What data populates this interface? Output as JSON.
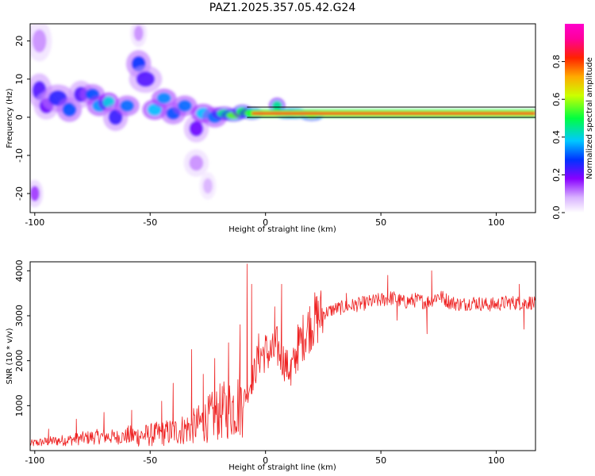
{
  "figure": {
    "title": "PAZ1.2025.357.05.42.G24"
  },
  "colors": {
    "snr_line": "#ee2222",
    "ridge_line": "#000000",
    "frame": "#000000"
  },
  "chart_data": [
    {
      "type": "heatmap",
      "xlabel": "Height of straight line (km)",
      "ylabel": "Frequency (Hz)",
      "xlim": [
        -102,
        117
      ],
      "ylim": [
        -25,
        24.5
      ],
      "xticks": [
        -100,
        -50,
        0,
        50,
        100
      ],
      "yticks": [
        -20,
        -10,
        0,
        10,
        20
      ],
      "xtick_labels": [
        "-100",
        "-50",
        "0",
        "50",
        "100"
      ],
      "ytick_labels": [
        "-20",
        "-10",
        "0",
        "10",
        "20"
      ],
      "ridge_line": {
        "x": [
          -8,
          117
        ],
        "y": [
          1,
          1
        ]
      },
      "colorbar": {
        "label": "Normalized spectral amplitude",
        "range": [
          0.0,
          1.0
        ],
        "ticks": [
          0.0,
          0.2,
          0.4,
          0.6,
          0.8
        ],
        "tick_labels": [
          "0.0",
          "0.2",
          "0.4",
          "0.6",
          "0.8"
        ],
        "stops": [
          {
            "v": 0.0,
            "color": "#ffffff"
          },
          {
            "v": 0.08,
            "color": "#d9b3ff"
          },
          {
            "v": 0.18,
            "color": "#8800ff"
          },
          {
            "v": 0.28,
            "color": "#0033ff"
          },
          {
            "v": 0.38,
            "color": "#00c8ff"
          },
          {
            "v": 0.5,
            "color": "#00ff40"
          },
          {
            "v": 0.62,
            "color": "#ccff00"
          },
          {
            "v": 0.72,
            "color": "#ffaa00"
          },
          {
            "v": 0.82,
            "color": "#ff2200"
          },
          {
            "v": 0.92,
            "color": "#ff0099"
          },
          {
            "v": 1.0,
            "color": "#ff00cc"
          }
        ]
      },
      "blobs": [
        {
          "x": -98,
          "y": 7,
          "v": 0.22,
          "rx": 3,
          "ry": 2.5
        },
        {
          "x": -95,
          "y": 3,
          "v": 0.2,
          "rx": 3,
          "ry": 2
        },
        {
          "x": -90,
          "y": 5,
          "v": 0.25,
          "rx": 4,
          "ry": 2
        },
        {
          "x": -85,
          "y": 2,
          "v": 0.3,
          "rx": 3,
          "ry": 1.8
        },
        {
          "x": -80,
          "y": 6,
          "v": 0.22,
          "rx": 3,
          "ry": 2
        },
        {
          "x": -75,
          "y": 6,
          "v": 0.3,
          "rx": 3,
          "ry": 1.5
        },
        {
          "x": -72,
          "y": 3,
          "v": 0.35,
          "rx": 3,
          "ry": 1.5
        },
        {
          "x": -68,
          "y": 4,
          "v": 0.4,
          "rx": 2.5,
          "ry": 1.4
        },
        {
          "x": -65,
          "y": 0,
          "v": 0.24,
          "rx": 3,
          "ry": 2
        },
        {
          "x": -60,
          "y": 3,
          "v": 0.32,
          "rx": 3,
          "ry": 1.5
        },
        {
          "x": -55,
          "y": 14,
          "v": 0.28,
          "rx": 3,
          "ry": 2
        },
        {
          "x": -52,
          "y": 10,
          "v": 0.22,
          "rx": 4,
          "ry": 2
        },
        {
          "x": -48,
          "y": 2,
          "v": 0.38,
          "rx": 3,
          "ry": 1.5
        },
        {
          "x": -44,
          "y": 5,
          "v": 0.34,
          "rx": 3,
          "ry": 1.4
        },
        {
          "x": -40,
          "y": 1,
          "v": 0.3,
          "rx": 3,
          "ry": 1.6
        },
        {
          "x": -35,
          "y": 3,
          "v": 0.32,
          "rx": 3,
          "ry": 1.5
        },
        {
          "x": -30,
          "y": -3,
          "v": 0.2,
          "rx": 3,
          "ry": 2
        },
        {
          "x": -27,
          "y": 1,
          "v": 0.38,
          "rx": 3,
          "ry": 1.4
        },
        {
          "x": -22,
          "y": 0,
          "v": 0.32,
          "rx": 3,
          "ry": 1.5
        },
        {
          "x": -18,
          "y": 1,
          "v": 0.45,
          "rx": 3,
          "ry": 1
        },
        {
          "x": -14,
          "y": 0.5,
          "v": 0.55,
          "rx": 3,
          "ry": 0.9
        },
        {
          "x": -10,
          "y": 1.5,
          "v": 0.5,
          "rx": 2.5,
          "ry": 1
        },
        {
          "x": -6,
          "y": 1,
          "v": 0.55,
          "rx": 3,
          "ry": 0.9
        },
        {
          "x": 5,
          "y": 3,
          "v": 0.45,
          "rx": 2,
          "ry": 1.2
        },
        {
          "x": 9,
          "y": 1,
          "v": 0.6,
          "rx": 3,
          "ry": 0.8
        },
        {
          "x": 13,
          "y": 1,
          "v": 0.65,
          "rx": 3,
          "ry": 0.8
        },
        {
          "x": 20,
          "y": 0.5,
          "v": 0.6,
          "rx": 3,
          "ry": 0.8
        },
        {
          "x": -100,
          "y": -20,
          "v": 0.15,
          "rx": 2,
          "ry": 2
        },
        {
          "x": -98,
          "y": 20,
          "v": 0.1,
          "rx": 3,
          "ry": 3
        },
        {
          "x": -55,
          "y": 22,
          "v": 0.1,
          "rx": 2,
          "ry": 2
        },
        {
          "x": -30,
          "y": -12,
          "v": 0.1,
          "rx": 3,
          "ry": 2
        },
        {
          "x": -25,
          "y": -18,
          "v": 0.08,
          "rx": 2,
          "ry": 2
        }
      ],
      "ridge_band": {
        "x_start": -8,
        "x_end": 117,
        "y": 1,
        "v": 0.8
      }
    },
    {
      "type": "line",
      "xlabel": "Height of straight line (km)",
      "ylabel": "SNR (10 * v/v)",
      "xlim": [
        -102,
        117
      ],
      "ylim": [
        0,
        4200
      ],
      "xticks": [
        -100,
        -50,
        0,
        50,
        100
      ],
      "yticks": [
        1000,
        2000,
        3000,
        4000
      ],
      "xtick_labels": [
        "-100",
        "-50",
        "0",
        "50",
        "100"
      ],
      "ytick_labels": [
        "1000",
        "2000",
        "3000",
        "4000"
      ],
      "series": [
        {
          "name": "SNR",
          "x": [
            -102,
            -100,
            -95,
            -90,
            -85,
            -80,
            -75,
            -70,
            -65,
            -60,
            -55,
            -50,
            -45,
            -40,
            -35,
            -30,
            -25,
            -20,
            -15,
            -10,
            -8,
            -5,
            -3,
            0,
            3,
            5,
            8,
            10,
            12,
            15,
            18,
            20,
            25,
            30,
            35,
            40,
            45,
            50,
            55,
            60,
            65,
            70,
            75,
            80,
            85,
            90,
            95,
            100,
            105,
            110,
            115,
            117
          ],
          "y": [
            150,
            170,
            200,
            220,
            240,
            270,
            300,
            320,
            300,
            320,
            330,
            350,
            380,
            420,
            480,
            560,
            700,
            850,
            950,
            1100,
            1300,
            1700,
            2100,
            2200,
            2150,
            2300,
            2000,
            1800,
            1900,
            2400,
            2700,
            2850,
            3050,
            3150,
            3200,
            3250,
            3300,
            3350,
            3400,
            3300,
            3350,
            3300,
            3450,
            3300,
            3250,
            3300,
            3250,
            3250,
            3300,
            3280,
            3300,
            3250
          ],
          "spikes": [
            {
              "x": -94,
              "y": 480
            },
            {
              "x": -82,
              "y": 700
            },
            {
              "x": -70,
              "y": 850
            },
            {
              "x": -58,
              "y": 900
            },
            {
              "x": -45,
              "y": 1100
            },
            {
              "x": -40,
              "y": 1500
            },
            {
              "x": -32,
              "y": 2250
            },
            {
              "x": -27,
              "y": 1700
            },
            {
              "x": -22,
              "y": 2050
            },
            {
              "x": -16,
              "y": 2400
            },
            {
              "x": -11,
              "y": 2800
            },
            {
              "x": -8,
              "y": 4150
            },
            {
              "x": -6,
              "y": 3700
            },
            {
              "x": -3,
              "y": 2600
            },
            {
              "x": 4,
              "y": 3200
            },
            {
              "x": 7,
              "y": 3700
            },
            {
              "x": 11,
              "y": 1450
            },
            {
              "x": 14,
              "y": 2800
            },
            {
              "x": 35,
              "y": 3500
            },
            {
              "x": 53,
              "y": 3900
            },
            {
              "x": 57,
              "y": 2900
            },
            {
              "x": 72,
              "y": 4000
            },
            {
              "x": 70,
              "y": 2600
            },
            {
              "x": 110,
              "y": 3700
            },
            {
              "x": 112,
              "y": 2700
            }
          ]
        }
      ]
    }
  ]
}
